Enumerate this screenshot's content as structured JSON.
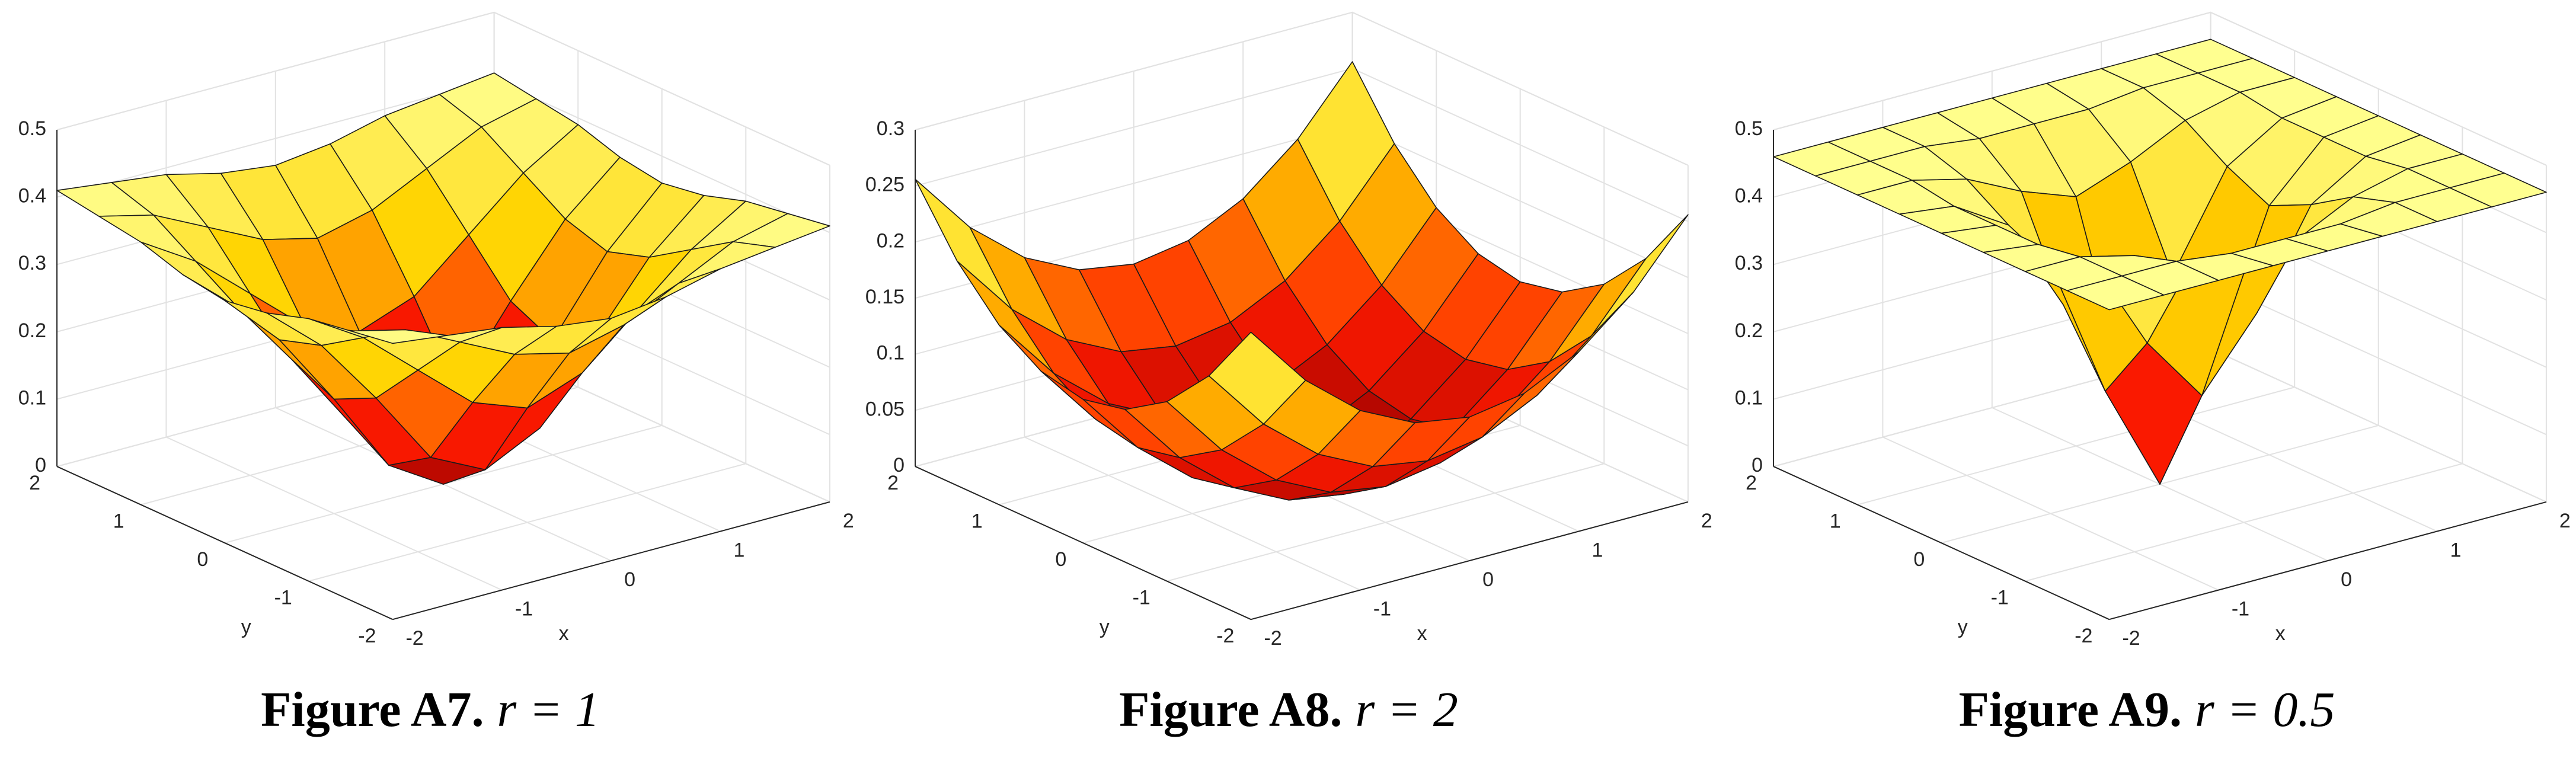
{
  "chart_data": [
    {
      "type": "surface",
      "caption": "Figure A7.",
      "caption_math": "r = 1",
      "xlabel": "x",
      "ylabel": "y",
      "x": [
        -2,
        -1.5,
        -1,
        -0.5,
        0,
        0.5,
        1,
        1.5,
        2
      ],
      "y": [
        -2,
        -1.5,
        -1,
        -0.5,
        0,
        0.5,
        1,
        1.5,
        2
      ],
      "z": [
        [
          0.41,
          0.4,
          0.39,
          0.37,
          0.36,
          0.37,
          0.39,
          0.4,
          0.41
        ],
        [
          0.4,
          0.38,
          0.34,
          0.3,
          0.28,
          0.3,
          0.34,
          0.38,
          0.4
        ],
        [
          0.39,
          0.34,
          0.27,
          0.2,
          0.17,
          0.2,
          0.27,
          0.34,
          0.39
        ],
        [
          0.37,
          0.3,
          0.2,
          0.09,
          0.05,
          0.09,
          0.2,
          0.3,
          0.37
        ],
        [
          0.36,
          0.28,
          0.17,
          0.05,
          0,
          0.05,
          0.17,
          0.28,
          0.36
        ],
        [
          0.37,
          0.3,
          0.2,
          0.09,
          0.05,
          0.09,
          0.2,
          0.3,
          0.37
        ],
        [
          0.39,
          0.34,
          0.27,
          0.2,
          0.17,
          0.2,
          0.27,
          0.34,
          0.39
        ],
        [
          0.4,
          0.38,
          0.34,
          0.3,
          0.28,
          0.3,
          0.34,
          0.38,
          0.4
        ],
        [
          0.41,
          0.4,
          0.39,
          0.37,
          0.36,
          0.37,
          0.39,
          0.4,
          0.41
        ]
      ],
      "xlim": [
        -2,
        2
      ],
      "ylim": [
        -2,
        2
      ],
      "zlim": [
        0,
        0.5
      ],
      "xticks": [
        -2,
        -1,
        0,
        1,
        2
      ],
      "yticks": [
        -2,
        -1,
        0,
        1,
        2
      ],
      "zticks": [
        0,
        0.1,
        0.2,
        0.3,
        0.4,
        0.5
      ],
      "grid": true,
      "colormap": [
        "#9a0000",
        "#ff1a00",
        "#ffd400",
        "#ffff90"
      ]
    },
    {
      "type": "surface",
      "caption": "Figure A8.",
      "caption_math": "r = 2",
      "xlabel": "x",
      "ylabel": "y",
      "x": [
        -2,
        -1.5,
        -1,
        -0.5,
        0,
        0.5,
        1,
        1.5,
        2
      ],
      "y": [
        -2,
        -1.5,
        -1,
        -0.5,
        0,
        0.5,
        1,
        1.5,
        2
      ],
      "z": [
        [
          0.256,
          0.2,
          0.16,
          0.136,
          0.128,
          0.136,
          0.16,
          0.2,
          0.256
        ],
        [
          0.2,
          0.144,
          0.104,
          0.08,
          0.072,
          0.08,
          0.104,
          0.144,
          0.2
        ],
        [
          0.16,
          0.104,
          0.064,
          0.04,
          0.032,
          0.04,
          0.064,
          0.104,
          0.16
        ],
        [
          0.136,
          0.08,
          0.04,
          0.016,
          0.008,
          0.016,
          0.04,
          0.08,
          0.136
        ],
        [
          0.128,
          0.072,
          0.032,
          0.008,
          0,
          0.008,
          0.032,
          0.072,
          0.128
        ],
        [
          0.136,
          0.08,
          0.04,
          0.016,
          0.008,
          0.016,
          0.04,
          0.08,
          0.136
        ],
        [
          0.16,
          0.104,
          0.064,
          0.04,
          0.032,
          0.04,
          0.064,
          0.104,
          0.16
        ],
        [
          0.2,
          0.144,
          0.104,
          0.08,
          0.072,
          0.08,
          0.104,
          0.144,
          0.2
        ],
        [
          0.256,
          0.2,
          0.16,
          0.136,
          0.128,
          0.136,
          0.16,
          0.2,
          0.256
        ]
      ],
      "xlim": [
        -2,
        2
      ],
      "ylim": [
        -2,
        2
      ],
      "zlim": [
        0,
        0.3
      ],
      "xticks": [
        -2,
        -1,
        0,
        1,
        2
      ],
      "yticks": [
        -2,
        -1,
        0,
        1,
        2
      ],
      "zticks": [
        0,
        0.05,
        0.1,
        0.15,
        0.2,
        0.25,
        0.3
      ],
      "grid": true,
      "colormap": [
        "#9a0000",
        "#ff1a00",
        "#ffd400",
        "#ffff90"
      ]
    },
    {
      "type": "surface",
      "caption": "Figure A9.",
      "caption_math": "r = 0.5",
      "xlabel": "x",
      "ylabel": "y",
      "x": [
        -2,
        -1.5,
        -1,
        -0.5,
        0,
        0.5,
        1,
        1.5,
        2
      ],
      "y": [
        -2,
        -1.5,
        -1,
        -0.5,
        0,
        0.5,
        1,
        1.5,
        2
      ],
      "z": [
        [
          0.46,
          0.46,
          0.46,
          0.46,
          0.46,
          0.46,
          0.46,
          0.46,
          0.46
        ],
        [
          0.46,
          0.46,
          0.46,
          0.45,
          0.45,
          0.45,
          0.46,
          0.46,
          0.46
        ],
        [
          0.46,
          0.46,
          0.44,
          0.4,
          0.37,
          0.4,
          0.44,
          0.46,
          0.46
        ],
        [
          0.46,
          0.45,
          0.4,
          0.26,
          0.16,
          0.26,
          0.4,
          0.45,
          0.46
        ],
        [
          0.46,
          0.45,
          0.37,
          0.16,
          0,
          0.16,
          0.37,
          0.45,
          0.46
        ],
        [
          0.46,
          0.45,
          0.4,
          0.26,
          0.16,
          0.26,
          0.4,
          0.45,
          0.46
        ],
        [
          0.46,
          0.46,
          0.44,
          0.4,
          0.37,
          0.4,
          0.44,
          0.46,
          0.46
        ],
        [
          0.46,
          0.46,
          0.46,
          0.45,
          0.45,
          0.45,
          0.46,
          0.46,
          0.46
        ],
        [
          0.46,
          0.46,
          0.46,
          0.46,
          0.46,
          0.46,
          0.46,
          0.46,
          0.46
        ]
      ],
      "xlim": [
        -2,
        2
      ],
      "ylim": [
        -2,
        2
      ],
      "zlim": [
        0,
        0.5
      ],
      "xticks": [
        -2,
        -1,
        0,
        1,
        2
      ],
      "yticks": [
        -2,
        -1,
        0,
        1,
        2
      ],
      "zticks": [
        0,
        0.1,
        0.2,
        0.3,
        0.4,
        0.5
      ],
      "grid": true,
      "colormap": [
        "#9a0000",
        "#ff1a00",
        "#ffd400",
        "#ffff90"
      ]
    }
  ]
}
